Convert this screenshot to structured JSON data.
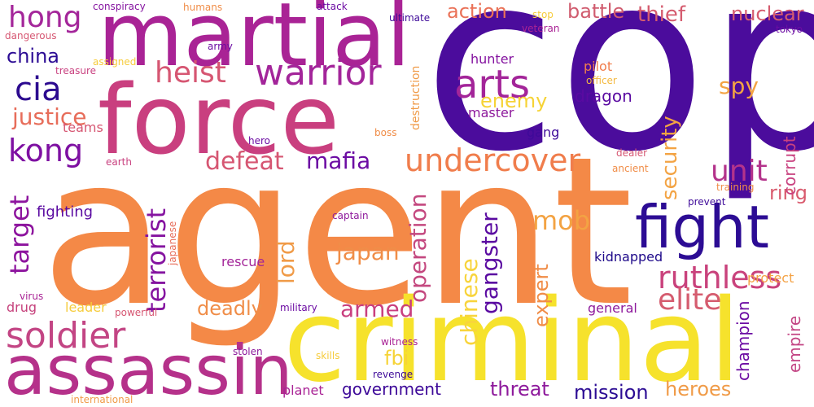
{
  "cloud": {
    "words": [
      {
        "text": "cop",
        "color": "#4b0c9c"
      },
      {
        "text": "agent",
        "color": "#f48947"
      },
      {
        "text": "force",
        "color": "#c93f7f"
      },
      {
        "text": "martial",
        "color": "#a92395"
      },
      {
        "text": "criminal",
        "color": "#f6e22c"
      },
      {
        "text": "assassin",
        "color": "#b5318a"
      },
      {
        "text": "fight",
        "color": "#2c0c94"
      },
      {
        "text": "soldier",
        "color": "#c34584"
      },
      {
        "text": "warrior",
        "color": "#a3259a"
      },
      {
        "text": "arts",
        "color": "#a32599"
      },
      {
        "text": "undercover",
        "color": "#f07d4c"
      },
      {
        "text": "ruthless",
        "color": "#c9427c"
      },
      {
        "text": "heist",
        "color": "#d65672"
      },
      {
        "text": "hong",
        "color": "#a4269a"
      },
      {
        "text": "kong",
        "color": "#7e10a2"
      },
      {
        "text": "cia",
        "color": "#2c0a8f"
      },
      {
        "text": "elite",
        "color": "#d55c6f"
      },
      {
        "text": "unit",
        "color": "#b4338b"
      },
      {
        "text": "justice",
        "color": "#e76d5a"
      },
      {
        "text": "target",
        "color": "#8d149e"
      },
      {
        "text": "terrorist",
        "color": "#8514a0"
      },
      {
        "text": "mob",
        "color": "#f3a343"
      },
      {
        "text": "gangster",
        "color": "#5a0aa1"
      },
      {
        "text": "operation",
        "color": "#c4487f"
      },
      {
        "text": "defeat",
        "color": "#d65672"
      },
      {
        "text": "mafia",
        "color": "#6c0ca3"
      },
      {
        "text": "japan",
        "color": "#f08d48"
      },
      {
        "text": "spy",
        "color": "#f3a343"
      },
      {
        "text": "security",
        "color": "#f3a343"
      },
      {
        "text": "armed",
        "color": "#c93f7f"
      },
      {
        "text": "lord",
        "color": "#f09b48"
      },
      {
        "text": "chinese",
        "color": "#f8d43c"
      },
      {
        "text": "expert",
        "color": "#f08d48"
      },
      {
        "text": "action",
        "color": "#ea7157"
      },
      {
        "text": "battle",
        "color": "#d05c6f"
      },
      {
        "text": "thief",
        "color": "#d55c6f"
      },
      {
        "text": "nuclear",
        "color": "#d55c6f"
      },
      {
        "text": "china",
        "color": "#2c0c94"
      },
      {
        "text": "enemy",
        "color": "#f6d336"
      },
      {
        "text": "dragon",
        "color": "#5a0aa1"
      },
      {
        "text": "fbi",
        "color": "#f6d336"
      },
      {
        "text": "deadly",
        "color": "#f08d48"
      },
      {
        "text": "heroes",
        "color": "#f09b48"
      },
      {
        "text": "threat",
        "color": "#8e1a9c"
      },
      {
        "text": "mission",
        "color": "#2c0c94"
      },
      {
        "text": "government",
        "color": "#3e0a99"
      },
      {
        "text": "empire",
        "color": "#c34584"
      },
      {
        "text": "champion",
        "color": "#6c0ca3"
      },
      {
        "text": "ring",
        "color": "#d95b6e"
      },
      {
        "text": "corrupt",
        "color": "#c94280"
      },
      {
        "text": "fighting",
        "color": "#5a0aa1"
      },
      {
        "text": "rescue",
        "color": "#a32599"
      },
      {
        "text": "kidnapped",
        "color": "#1f0a8a"
      },
      {
        "text": "protect",
        "color": "#f4a245"
      },
      {
        "text": "general",
        "color": "#8e1a9c"
      },
      {
        "text": "drug",
        "color": "#c6427c"
      },
      {
        "text": "leader",
        "color": "#f6cc3c"
      },
      {
        "text": "master",
        "color": "#8e1a9c"
      },
      {
        "text": "hunter",
        "color": "#8514a0"
      },
      {
        "text": "pilot",
        "color": "#f07d4c"
      },
      {
        "text": "gang",
        "color": "#3e0a99"
      },
      {
        "text": "teams",
        "color": "#d65672"
      },
      {
        "text": "captain",
        "color": "#8e1a9c"
      },
      {
        "text": "military",
        "color": "#6c0ca3"
      },
      {
        "text": "powerful",
        "color": "#d65672"
      },
      {
        "text": "witness",
        "color": "#a92395"
      },
      {
        "text": "stolen",
        "color": "#8e1a9c"
      },
      {
        "text": "skills",
        "color": "#f6cc3c"
      },
      {
        "text": "revenge",
        "color": "#3e0a99"
      },
      {
        "text": "planet",
        "color": "#a92395"
      },
      {
        "text": "virus",
        "color": "#a92395"
      },
      {
        "text": "international",
        "color": "#f09b48"
      },
      {
        "text": "destruction",
        "color": "#f09b48"
      },
      {
        "text": "conspiracy",
        "color": "#8514a0"
      },
      {
        "text": "humans",
        "color": "#f08d48"
      },
      {
        "text": "attack",
        "color": "#6c0ca3"
      },
      {
        "text": "ultimate",
        "color": "#3e0a99"
      },
      {
        "text": "stop",
        "color": "#f6cc3c"
      },
      {
        "text": "veteran",
        "color": "#a92395"
      },
      {
        "text": "tokyo",
        "color": "#6c0ca3"
      },
      {
        "text": "dangerous",
        "color": "#d65672"
      },
      {
        "text": "army",
        "color": "#6c0ca3"
      },
      {
        "text": "assigned",
        "color": "#f6cc3c"
      },
      {
        "text": "treasure",
        "color": "#c94280"
      },
      {
        "text": "officer",
        "color": "#f4b940"
      },
      {
        "text": "hero",
        "color": "#6c0ca3"
      },
      {
        "text": "boss",
        "color": "#f08d48"
      },
      {
        "text": "earth",
        "color": "#c94280"
      },
      {
        "text": "dealer",
        "color": "#d65672"
      },
      {
        "text": "ancient",
        "color": "#f08d48"
      },
      {
        "text": "training",
        "color": "#f08d48"
      },
      {
        "text": "prevent",
        "color": "#3e0a99"
      },
      {
        "text": "japanese",
        "color": "#e76d5a"
      }
    ]
  }
}
